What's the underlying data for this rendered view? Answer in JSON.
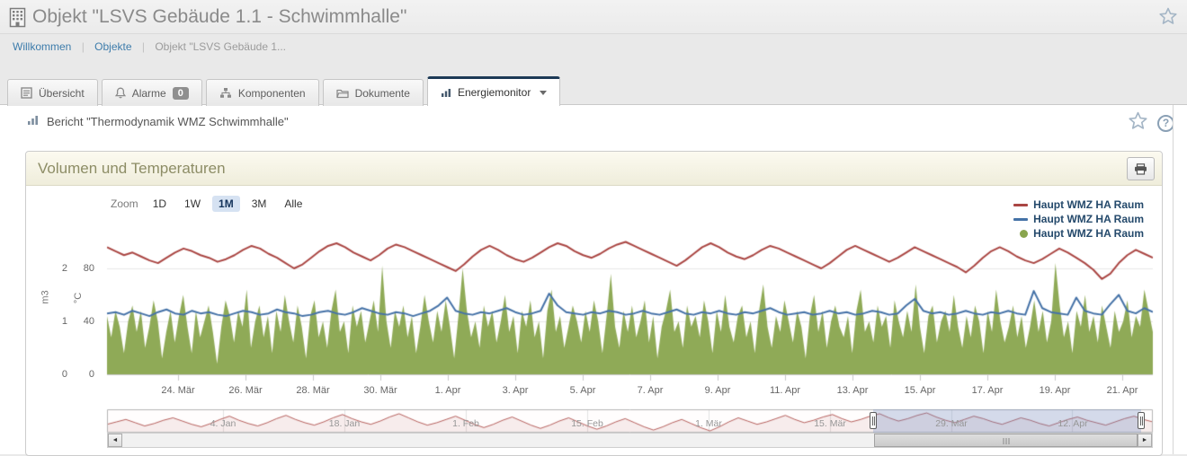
{
  "header": {
    "title": "Objekt \"LSVS Gebäude 1.1 - Schwimmhalle\""
  },
  "breadcrumb": {
    "separator": "|",
    "items": [
      {
        "label": "Willkommen",
        "link": true
      },
      {
        "label": "Objekte",
        "link": true
      },
      {
        "label": "Objekt \"LSVS Gebäude 1...",
        "link": false
      }
    ]
  },
  "tabs": [
    {
      "label": "Übersicht",
      "icon": "overview-icon",
      "active": false
    },
    {
      "label": "Alarme",
      "icon": "bell-icon",
      "badge": "0",
      "active": false
    },
    {
      "label": "Komponenten",
      "icon": "sitemap-icon",
      "active": false
    },
    {
      "label": "Dokumente",
      "icon": "folder-icon",
      "active": false
    },
    {
      "label": "Energiemonitor",
      "icon": "chart-icon",
      "active": true,
      "has_caret": true
    }
  ],
  "report": {
    "title": "Bericht \"Thermodynamik WMZ Schwimmhalle\""
  },
  "panel": {
    "title": "Volumen und Temperaturen"
  },
  "chart_data": {
    "type": "line",
    "title": "Volumen und Temperaturen",
    "zoom_controls": {
      "label": "Zoom",
      "options": [
        "1D",
        "1W",
        "1M",
        "3M",
        "Alle"
      ],
      "selected": "1M"
    },
    "y_axes": [
      {
        "label": "m3",
        "ticks": [
          0,
          1,
          2
        ],
        "ylim": [
          0,
          2.85
        ]
      },
      {
        "label": "°C",
        "ticks": [
          0,
          40,
          80
        ],
        "ylim": [
          0,
          114
        ]
      }
    ],
    "x_ticks": [
      "24. Mär",
      "26. Mär",
      "28. Mär",
      "30. Mär",
      "1. Apr",
      "3. Apr",
      "5. Apr",
      "7. Apr",
      "9. Apr",
      "11. Apr",
      "13. Apr",
      "15. Apr",
      "17. Apr",
      "19. Apr",
      "21. Apr"
    ],
    "grid": "horizontal-only",
    "legend_position": "top-right",
    "legend": [
      {
        "name": "Haupt WMZ HA Raum",
        "color": "#AA4643",
        "marker": "line"
      },
      {
        "name": "Haupt WMZ HA Raum",
        "color": "#4572A7",
        "marker": "line"
      },
      {
        "name": "Haupt WMZ HA Raum",
        "color": "#89A54E",
        "marker": "circle"
      }
    ],
    "series": [
      {
        "name": "Haupt WMZ HA Raum",
        "type": "line",
        "axis": "°C",
        "color": "#AA4643",
        "data": [
          96,
          93,
          90,
          92,
          89,
          86,
          84,
          88,
          92,
          95,
          93,
          90,
          88,
          85,
          87,
          90,
          94,
          97,
          95,
          91,
          88,
          84,
          80,
          83,
          88,
          93,
          97,
          99,
          96,
          92,
          89,
          86,
          90,
          95,
          98,
          96,
          93,
          90,
          87,
          84,
          81,
          78,
          83,
          89,
          94,
          97,
          94,
          90,
          87,
          85,
          88,
          92,
          96,
          99,
          97,
          93,
          90,
          88,
          91,
          95,
          98,
          100,
          97,
          94,
          91,
          88,
          85,
          82,
          86,
          91,
          96,
          99,
          96,
          92,
          89,
          87,
          90,
          94,
          97,
          95,
          92,
          89,
          86,
          83,
          80,
          84,
          89,
          94,
          97,
          94,
          91,
          88,
          85,
          88,
          92,
          96,
          93,
          90,
          87,
          84,
          81,
          77,
          82,
          88,
          93,
          96,
          93,
          89,
          86,
          84,
          87,
          91,
          95,
          92,
          88,
          84,
          79,
          72,
          76,
          84,
          90,
          94,
          91,
          88
        ]
      },
      {
        "name": "Haupt WMZ HA Raum",
        "type": "line",
        "axis": "°C",
        "color": "#4572A7",
        "data": [
          46,
          47,
          45,
          48,
          46,
          44,
          47,
          49,
          46,
          45,
          48,
          46,
          47,
          45,
          44,
          46,
          48,
          47,
          45,
          46,
          49,
          47,
          46,
          44,
          45,
          47,
          48,
          46,
          45,
          47,
          50,
          48,
          46,
          45,
          47,
          46,
          44,
          46,
          48,
          52,
          58,
          48,
          46,
          45,
          47,
          46,
          48,
          50,
          47,
          45,
          46,
          48,
          61,
          52,
          47,
          46,
          45,
          47,
          46,
          48,
          47,
          45,
          46,
          48,
          46,
          45,
          47,
          49,
          46,
          45,
          47,
          46,
          48,
          46,
          45,
          47,
          46,
          48,
          50,
          47,
          45,
          46,
          47,
          45,
          46,
          48,
          46,
          47,
          45,
          46,
          48,
          47,
          45,
          46,
          52,
          57,
          48,
          46,
          47,
          45,
          46,
          48,
          46,
          45,
          47,
          46,
          48,
          46,
          45,
          63,
          50,
          47,
          46,
          45,
          58,
          48,
          46,
          45,
          53,
          60,
          48,
          46,
          50,
          47
        ]
      },
      {
        "name": "Haupt WMZ HA Raum",
        "type": "area",
        "axis": "m3",
        "color": "#89A54E",
        "data": [
          1.1,
          0.7,
          1.2,
          0.9,
          0.4,
          1.0,
          1.3,
          0.8,
          1.2,
          0.5,
          0.9,
          1.4,
          1.0,
          0.3,
          0.8,
          1.2,
          0.6,
          1.1,
          1.5,
          0.9,
          0.4,
          1.2,
          0.7,
          1.0,
          1.3,
          0.8,
          0.2,
          0.9,
          1.4,
          1.1,
          0.6,
          1.2,
          0.9,
          1.6,
          0.5,
          1.0,
          1.3,
          0.7,
          1.1,
          0.4,
          1.2,
          0.8,
          1.5,
          1.0,
          0.6,
          1.3,
          0.9,
          0.3,
          1.1,
          1.4,
          0.7,
          1.0,
          0.5,
          1.2,
          1.6,
          0.8,
          1.0,
          0.4,
          1.3,
          0.9,
          1.2,
          0.6,
          1.0,
          1.4,
          0.8,
          2.05,
          1.0,
          0.5,
          1.2,
          0.9,
          1.3,
          0.7,
          1.1,
          0.4,
          0.9,
          1.5,
          1.0,
          0.6,
          1.2,
          0.8,
          1.4,
          0.9,
          0.3,
          1.1,
          2.0,
          1.2,
          0.7,
          1.0,
          0.5,
          1.3,
          0.9,
          1.2,
          0.6,
          1.0,
          1.5,
          0.8,
          1.1,
          0.4,
          1.2,
          0.9,
          1.4,
          0.7,
          1.0,
          0.3,
          1.2,
          1.6,
          0.8,
          1.1,
          0.5,
          0.9,
          1.3,
          1.0,
          0.6,
          1.2,
          0.8,
          1.4,
          1.0,
          0.4,
          1.1,
          1.9,
          0.9,
          0.5,
          1.2,
          0.8,
          1.3,
          0.7,
          1.0,
          1.4,
          0.6,
          1.1,
          0.3,
          0.9,
          1.2,
          1.6,
          0.8,
          1.0,
          0.5,
          1.3,
          0.9,
          1.1,
          0.7,
          1.4,
          1.0,
          0.4,
          1.2,
          0.8,
          1.5,
          0.9,
          0.6,
          1.1,
          1.3,
          0.7,
          1.0,
          0.4,
          1.2,
          1.7,
          0.9,
          0.5,
          1.1,
          0.8,
          1.4,
          1.0,
          0.6,
          1.2,
          0.9,
          0.3,
          1.1,
          1.5,
          0.8,
          1.2,
          0.5,
          1.0,
          1.3,
          0.9,
          0.7,
          1.1,
          0.4,
          1.2,
          1.6,
          0.8,
          1.0,
          0.6,
          1.3,
          0.9,
          1.1,
          0.5,
          1.4,
          1.0,
          0.7,
          1.2,
          0.8,
          1.7,
          0.9,
          0.4,
          1.1,
          1.3,
          0.6,
          1.0,
          1.2,
          0.8,
          1.5,
          0.9,
          0.5,
          1.1,
          0.7,
          1.3,
          1.0,
          0.4,
          1.2,
          0.8,
          1.6,
          1.0,
          0.6,
          0.9,
          1.3,
          0.7,
          1.1,
          0.5,
          0.9,
          1.4,
          0.8,
          1.2,
          0.6,
          1.0,
          2.1,
          1.3,
          0.7,
          1.0,
          0.4,
          1.2,
          0.9,
          1.5,
          0.8,
          1.1,
          0.6,
          1.3,
          0.9,
          0.5,
          1.2,
          0.8,
          1.0,
          1.4,
          0.7,
          1.1,
          0.9,
          1.6,
          1.2,
          0.8
        ]
      }
    ],
    "navigator": {
      "labels": [
        "4. Jan",
        "18. Jan",
        "1. Feb",
        "15. Feb",
        "1. Mär",
        "15. Mär",
        "29. Mär",
        "12. Apr"
      ],
      "series_color": "#AA4643",
      "selection": {
        "from": 0.733,
        "to": 0.989
      },
      "data": [
        82,
        85,
        88,
        84,
        80,
        83,
        87,
        90,
        86,
        82,
        79,
        83,
        88,
        92,
        87,
        83,
        80,
        84,
        89,
        93,
        88,
        84,
        81,
        85,
        90,
        94,
        89,
        85,
        82,
        86,
        91,
        95,
        90,
        85,
        81,
        84,
        88,
        92,
        87,
        82,
        78,
        82,
        87,
        91,
        86,
        81,
        77,
        81,
        86,
        90,
        85,
        80,
        76,
        80,
        85,
        89,
        84,
        79,
        75,
        79,
        84,
        88,
        83,
        78,
        74,
        79,
        85,
        90,
        86,
        82,
        85,
        89,
        93,
        88,
        84,
        87,
        91,
        94,
        89,
        85,
        88,
        92,
        95,
        90,
        86,
        89,
        93,
        96,
        91,
        87,
        84,
        88,
        92,
        89,
        85,
        82,
        86,
        90,
        87,
        83,
        80,
        84,
        88,
        91,
        87,
        84,
        81,
        85,
        89,
        92,
        88,
        85
      ]
    }
  }
}
